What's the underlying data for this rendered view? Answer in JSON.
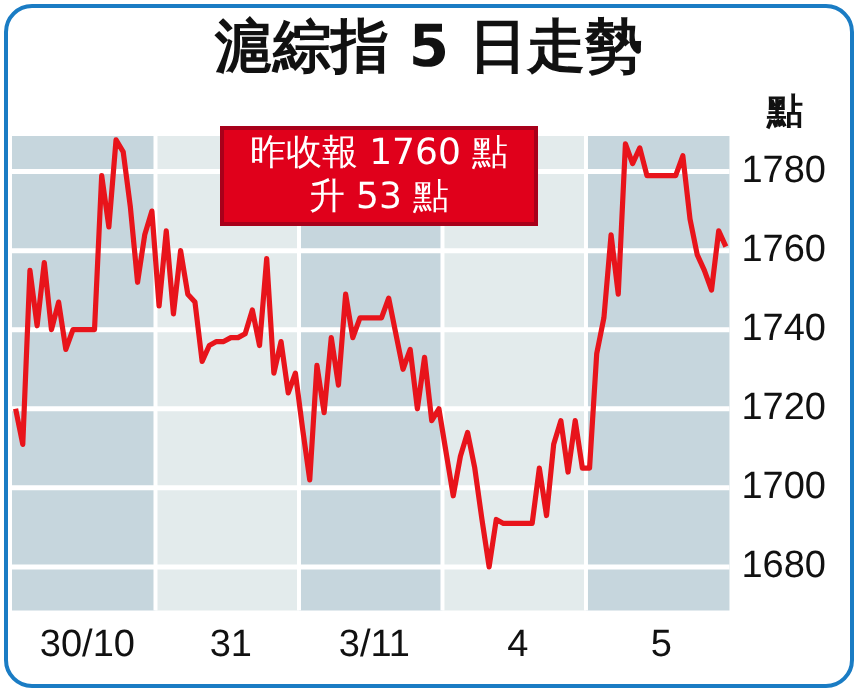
{
  "chart_data": {
    "type": "line",
    "title": "滬綜指 5 日走勢",
    "ylabel": "點",
    "annotations": [
      "昨收報 1760 點",
      "升 53 點"
    ],
    "categories": [
      null,
      null,
      null,
      null,
      null,
      null,
      null,
      null,
      null,
      null,
      "30/10",
      null,
      null,
      null,
      null,
      null,
      null,
      null,
      null,
      null,
      null,
      null,
      null,
      null,
      null,
      null,
      null,
      null,
      null,
      null,
      "31",
      null,
      null,
      null,
      null,
      null,
      null,
      null,
      null,
      null,
      null,
      null,
      null,
      null,
      null,
      null,
      null,
      null,
      null,
      null,
      "3/11",
      null,
      null,
      null,
      null,
      null,
      null,
      null,
      null,
      null,
      null,
      null,
      null,
      null,
      null,
      null,
      null,
      null,
      null,
      null,
      "4",
      null,
      null,
      null,
      null,
      null,
      null,
      null,
      null,
      null,
      null,
      null,
      null,
      null,
      null,
      null,
      null,
      null,
      null,
      null,
      "5",
      null,
      null,
      null,
      null,
      null,
      null,
      null,
      null,
      null
    ],
    "series": [
      {
        "color": "#e8141b",
        "values": [
          1720,
          1711,
          1755,
          1741,
          1757,
          1740,
          1747,
          1735,
          1740,
          1740,
          1740,
          1740,
          1779,
          1766,
          1788,
          1785,
          1771,
          1752,
          1764,
          1770,
          1746,
          1765,
          1744,
          1760,
          1749,
          1747,
          1732,
          1736,
          1737,
          1737,
          1738,
          1738,
          1739,
          1745,
          1736,
          1758,
          1729,
          1737,
          1724,
          1729,
          1715,
          1702,
          1731,
          1719,
          1738,
          1726,
          1749,
          1738,
          1743,
          1743,
          1743,
          1743,
          1748,
          1739,
          1730,
          1735,
          1720,
          1733,
          1717,
          1720,
          1709,
          1698,
          1708,
          1714,
          1705,
          1692,
          1680,
          1692,
          1691,
          1691,
          1691,
          1691,
          1691,
          1705,
          1693,
          1711,
          1717,
          1704,
          1717,
          1705,
          1705,
          1734,
          1743,
          1764,
          1749,
          1787,
          1782,
          1786,
          1779,
          1779,
          1779,
          1779,
          1779,
          1784,
          1768,
          1759,
          1755,
          1750,
          1765,
          1761
        ]
      }
    ],
    "ylim": [
      1669,
      1789
    ],
    "yticks": [
      1680,
      1700,
      1720,
      1740,
      1760,
      1780
    ],
    "grid": "y",
    "legend": false,
    "marker": "none",
    "line_style": "solid"
  }
}
